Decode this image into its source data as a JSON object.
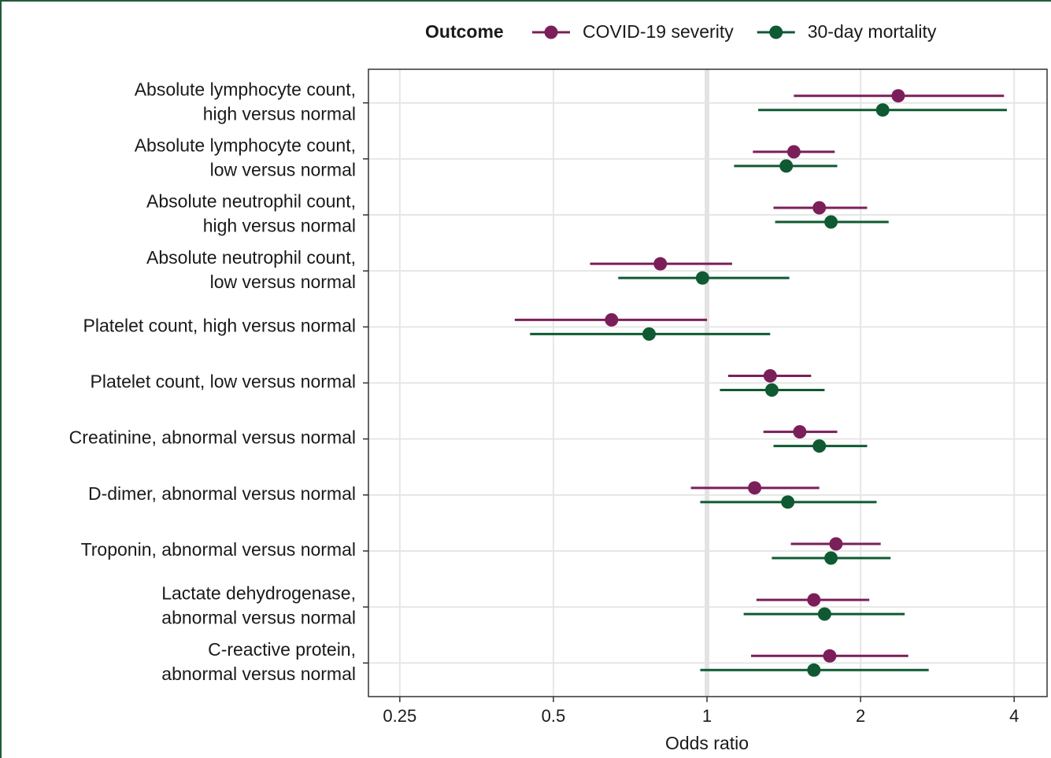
{
  "chart_data": {
    "type": "forest",
    "x_label": "Odds ratio",
    "legend_title": "Outcome",
    "legend_position": "top",
    "x_scale": "log",
    "grid": true,
    "reference_line": 1,
    "xlim": [
      0.217,
      4.64
    ],
    "xticks": [
      0.25,
      0.5,
      1,
      2,
      4
    ],
    "categories": [
      [
        "Absolute lymphocyte count,",
        "high versus normal"
      ],
      [
        "Absolute lymphocyte count,",
        "low versus normal"
      ],
      [
        "Absolute neutrophil count,",
        "high versus normal"
      ],
      [
        "Absolute neutrophil count,",
        "low versus normal"
      ],
      [
        "Platelet count, high versus normal"
      ],
      [
        "Platelet count, low versus normal"
      ],
      [
        "Creatinine, abnormal versus normal"
      ],
      [
        "D-dimer, abnormal versus normal"
      ],
      [
        "Troponin, abnormal versus normal"
      ],
      [
        "Lactate dehydrogenase,",
        "abnormal versus normal"
      ],
      [
        "C-reactive protein,",
        "abnormal versus normal"
      ]
    ],
    "series": [
      {
        "name": "COVID-19 severity",
        "color": "#7b1f5a",
        "values": [
          2.37,
          1.48,
          1.66,
          0.81,
          0.65,
          1.33,
          1.52,
          1.24,
          1.79,
          1.62,
          1.74
        ],
        "lower": [
          1.48,
          1.23,
          1.35,
          0.59,
          0.42,
          1.1,
          1.29,
          0.93,
          1.46,
          1.25,
          1.22
        ],
        "upper": [
          3.82,
          1.78,
          2.06,
          1.12,
          1.0,
          1.6,
          1.8,
          1.66,
          2.19,
          2.08,
          2.48
        ]
      },
      {
        "name": "30-day mortality",
        "color": "#0f5a32",
        "values": [
          2.21,
          1.43,
          1.75,
          0.98,
          0.77,
          1.34,
          1.66,
          1.44,
          1.75,
          1.7,
          1.62
        ],
        "lower": [
          1.26,
          1.13,
          1.36,
          0.67,
          0.45,
          1.06,
          1.35,
          0.97,
          1.34,
          1.18,
          0.97
        ],
        "upper": [
          3.87,
          1.8,
          2.27,
          1.45,
          1.33,
          1.7,
          2.06,
          2.15,
          2.29,
          2.44,
          2.72
        ]
      }
    ]
  }
}
